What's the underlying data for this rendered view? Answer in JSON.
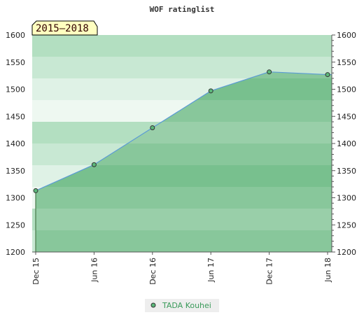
{
  "chart_data": {
    "type": "area",
    "title": "WOF ratinglist",
    "period_label": "2015–2018",
    "x": [
      "Dec 15",
      "Jun 16",
      "Dec 16",
      "Jun 17",
      "Dec 17",
      "Jun 18"
    ],
    "ylim": [
      1200,
      1600
    ],
    "y_ticks": [
      "1200",
      "1250",
      "1300",
      "1350",
      "1400",
      "1450",
      "1500",
      "1550",
      "1600"
    ],
    "series": [
      {
        "name": "TADA Kouhei",
        "values": [
          1313,
          1361,
          1429,
          1497,
          1532,
          1527
        ]
      }
    ],
    "legend_position": "bottom",
    "colors": {
      "line": "#5b9bd5",
      "area": "#6cbf86",
      "marker": "#5cb87a",
      "legend_text": "#3a9a5a",
      "period_box": "#ffffc0"
    }
  }
}
